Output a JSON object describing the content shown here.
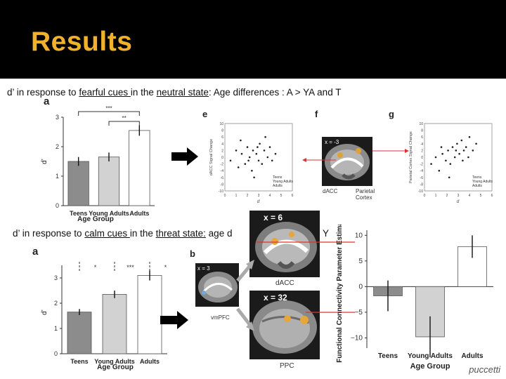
{
  "slide": {
    "title": "Results",
    "line1": {
      "p1": "d’ in response to ",
      "u1": "fearful cues ",
      "p2": "in the ",
      "u2": "neutral state",
      "p3": ": Age differences : A > YA and T"
    },
    "line2": {
      "p1": "d’ in response to ",
      "u1": "calm cues ",
      "p2": "in the ",
      "u2": "threat state:",
      "p3": " age d",
      "tail": "Y"
    },
    "credit": "puccetti"
  },
  "panels": {
    "a1_label": "a",
    "a2_label": "a",
    "b2_label": "b",
    "e_label": "e",
    "f_label": "f",
    "g_label": "g",
    "brain_e_coord": "x = -3",
    "brain_e_dacc": "dACC",
    "brain_e_parietal": "Parietal Cortex",
    "big_brain_top_coord": "x = 6",
    "big_brain_top_label": "dACC",
    "big_brain_bottom_coord": "x = 32",
    "big_brain_bottom_label": "PPC",
    "small_brain_b_coord": "x = 3",
    "small_brain_b_label": "vmPFC",
    "scatter_legend": [
      "Teens",
      "Young Adults",
      "Adults"
    ]
  },
  "chart_data": [
    {
      "type": "bar",
      "title": "",
      "categories": [
        "Teens",
        "Young Adults",
        "Adults"
      ],
      "values": [
        1.5,
        1.65,
        2.55
      ],
      "errors": [
        0.15,
        0.15,
        0.18
      ],
      "xlabel": "Age Group",
      "ylabel": "d’",
      "ylim": [
        0,
        3
      ],
      "yticks": [
        "0",
        "1",
        "2",
        "3"
      ],
      "colors": [
        "#8c8c8c",
        "#d2d2d2",
        "#ffffff"
      ],
      "significance": [
        "***",
        "**"
      ]
    },
    {
      "type": "bar",
      "title": "",
      "categories": [
        "Teens",
        "Young Adults",
        "Adults"
      ],
      "values": [
        1.65,
        2.35,
        3.1
      ],
      "errors": [
        0.12,
        0.15,
        0.2
      ],
      "xlabel": "Age Group",
      "ylabel": "d’",
      "ylim": [
        0,
        3.5
      ],
      "yticks": [
        "0",
        "1",
        "2",
        "3"
      ],
      "colors": [
        "#8c8c8c",
        "#d2d2d2",
        "#ffffff"
      ],
      "significance": [
        "*",
        "***",
        "*"
      ]
    },
    {
      "type": "bar",
      "title": "",
      "categories": [
        "Teens",
        "Young Adults",
        "Adults"
      ],
      "values": [
        -1.8,
        -9.8,
        7.8
      ],
      "errors": [
        3.0,
        4.0,
        2.2
      ],
      "xlabel": "Age Group",
      "ylabel": "Functional Connectivity Parameter Estimate",
      "ylim": [
        -12,
        11
      ],
      "yticks": [
        "−10",
        "−5",
        "0",
        "5",
        "10"
      ],
      "colors": [
        "#8c8c8c",
        "#d2d2d2",
        "#ffffff"
      ]
    },
    {
      "type": "scatter",
      "title": "",
      "xlabel": "d’",
      "ylabel": "dACC Signal Change",
      "xticks": [
        "0",
        "1",
        "2",
        "3",
        "4",
        "5",
        "6"
      ],
      "yticks": [
        "-10",
        "-8",
        "-6",
        "-4",
        "-2",
        "0",
        "2",
        "4",
        "6",
        "8",
        "10"
      ],
      "xlim": [
        0,
        6
      ],
      "ylim": [
        -10,
        10
      ],
      "points": [
        [
          0.5,
          -1
        ],
        [
          1,
          2
        ],
        [
          1.2,
          -3
        ],
        [
          1.5,
          1
        ],
        [
          1.8,
          -2
        ],
        [
          2,
          3
        ],
        [
          2.2,
          0
        ],
        [
          2.4,
          -4
        ],
        [
          2.5,
          2
        ],
        [
          2.8,
          1
        ],
        [
          3,
          -1
        ],
        [
          3.1,
          4
        ],
        [
          3.3,
          -2
        ],
        [
          3.5,
          2
        ],
        [
          3.8,
          0
        ],
        [
          4,
          3
        ],
        [
          4.2,
          -1
        ],
        [
          4.5,
          1
        ],
        [
          2.6,
          -6
        ],
        [
          1.4,
          5
        ],
        [
          3.6,
          6
        ],
        [
          2.1,
          -1
        ],
        [
          2.9,
          3
        ]
      ]
    },
    {
      "type": "scatter",
      "title": "",
      "xlabel": "d’",
      "ylabel": "Parietal Cortex Signal Change",
      "xticks": [
        "0",
        "1",
        "2",
        "3",
        "4",
        "5",
        "6"
      ],
      "yticks": [
        "-10",
        "-8",
        "-6",
        "-4",
        "-2",
        "0",
        "2",
        "4",
        "6",
        "8",
        "10"
      ],
      "xlim": [
        0,
        6
      ],
      "ylim": [
        -10,
        10
      ],
      "points": [
        [
          0.6,
          -2
        ],
        [
          1,
          0
        ],
        [
          1.3,
          -4
        ],
        [
          1.6,
          1
        ],
        [
          1.9,
          -1
        ],
        [
          2.1,
          2
        ],
        [
          2.3,
          -2
        ],
        [
          2.5,
          3
        ],
        [
          2.7,
          0
        ],
        [
          2.9,
          4
        ],
        [
          3.1,
          1
        ],
        [
          3.3,
          5
        ],
        [
          3.5,
          2
        ],
        [
          3.7,
          3
        ],
        [
          4,
          6
        ],
        [
          4.3,
          2
        ],
        [
          4.6,
          4
        ],
        [
          2.2,
          -6
        ],
        [
          3.4,
          -1
        ],
        [
          1.5,
          3
        ],
        [
          3.9,
          0
        ],
        [
          2.8,
          2
        ]
      ]
    }
  ]
}
